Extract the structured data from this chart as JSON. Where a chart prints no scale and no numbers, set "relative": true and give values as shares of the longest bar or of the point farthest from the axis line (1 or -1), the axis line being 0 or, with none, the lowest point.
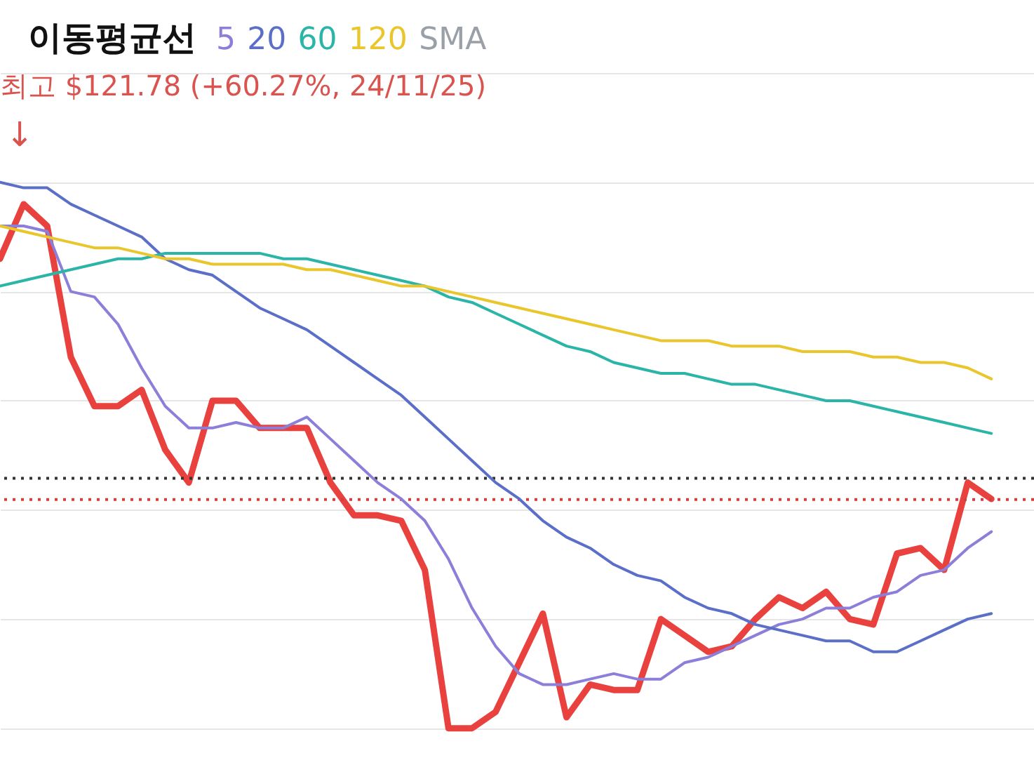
{
  "chart_data": {
    "type": "line",
    "title": "이동평균선",
    "relative": true,
    "grid": "y",
    "line_style": "solid",
    "categories": [
      null,
      null,
      null,
      null,
      null,
      null,
      null,
      null,
      null,
      null,
      null,
      null,
      null,
      null,
      null,
      null,
      null,
      null,
      null,
      null,
      null,
      null,
      null,
      null,
      null,
      null,
      null,
      null,
      null,
      null,
      null,
      null,
      null,
      null,
      null,
      null,
      null,
      null,
      null,
      null,
      null,
      null,
      null
    ],
    "series": [
      {
        "color": "#e8413e",
        "values": [
          0.86,
          0.96,
          0.92,
          0.68,
          0.59,
          0.59,
          0.62,
          0.51,
          0.45,
          0.6,
          0.6,
          0.55,
          0.55,
          0.55,
          0.45,
          0.39,
          0.39,
          0.38,
          0.29,
          0.0,
          0.0,
          0.03,
          0.12,
          0.21,
          0.02,
          0.08,
          0.07,
          0.07,
          0.2,
          0.17,
          0.14,
          0.15,
          0.2,
          0.24,
          0.22,
          0.25,
          0.2,
          0.19,
          0.32,
          0.33,
          0.29,
          0.45,
          0.42
        ]
      },
      {
        "name": "5",
        "color": "#8b7fd9",
        "values": [
          0.92,
          0.92,
          0.91,
          0.8,
          0.79,
          0.74,
          0.66,
          0.59,
          0.55,
          0.55,
          0.56,
          0.55,
          0.55,
          0.57,
          0.53,
          0.49,
          0.45,
          0.42,
          0.38,
          0.31,
          0.22,
          0.15,
          0.1,
          0.08,
          0.08,
          0.09,
          0.1,
          0.09,
          0.09,
          0.12,
          0.13,
          0.15,
          0.17,
          0.19,
          0.2,
          0.22,
          0.22,
          0.24,
          0.25,
          0.28,
          0.29,
          0.33,
          0.36
        ]
      },
      {
        "name": "20",
        "color": "#5b6fc8",
        "values": [
          1.0,
          0.99,
          0.99,
          0.96,
          0.94,
          0.92,
          0.9,
          0.86,
          0.84,
          0.83,
          0.8,
          0.77,
          0.75,
          0.73,
          0.7,
          0.67,
          0.64,
          0.61,
          0.57,
          0.53,
          0.49,
          0.45,
          0.42,
          0.38,
          0.35,
          0.33,
          0.3,
          0.28,
          0.27,
          0.24,
          0.22,
          0.21,
          0.19,
          0.18,
          0.17,
          0.16,
          0.16,
          0.14,
          0.14,
          0.16,
          0.18,
          0.2,
          0.21
        ]
      },
      {
        "name": "60",
        "color": "#2bb5a8",
        "values": [
          0.81,
          0.82,
          0.83,
          0.84,
          0.85,
          0.86,
          0.86,
          0.87,
          0.87,
          0.87,
          0.87,
          0.87,
          0.86,
          0.86,
          0.85,
          0.84,
          0.83,
          0.82,
          0.81,
          0.79,
          0.78,
          0.76,
          0.74,
          0.72,
          0.7,
          0.69,
          0.67,
          0.66,
          0.65,
          0.65,
          0.64,
          0.63,
          0.63,
          0.62,
          0.61,
          0.6,
          0.6,
          0.59,
          0.58,
          0.57,
          0.56,
          0.55,
          0.54
        ]
      },
      {
        "name": "120",
        "color": "#e8c62c",
        "values": [
          0.92,
          0.91,
          0.9,
          0.89,
          0.88,
          0.88,
          0.87,
          0.86,
          0.86,
          0.85,
          0.85,
          0.85,
          0.85,
          0.84,
          0.84,
          0.83,
          0.82,
          0.81,
          0.81,
          0.8,
          0.79,
          0.78,
          0.77,
          0.76,
          0.75,
          0.74,
          0.73,
          0.72,
          0.71,
          0.71,
          0.71,
          0.7,
          0.7,
          0.7,
          0.69,
          0.69,
          0.69,
          0.68,
          0.68,
          0.67,
          0.67,
          0.66,
          0.64
        ]
      }
    ],
    "ref_lines": [
      {
        "axis": "y",
        "value": 0.458,
        "color": "#333333",
        "line_style": "dotted"
      },
      {
        "axis": "y",
        "value": 0.419,
        "color": "#d04040",
        "line_style": "dotted"
      }
    ],
    "annotations": [
      "최고 $121.78 (+60.27%, 24/11/25)",
      "↓",
      "SMA"
    ]
  }
}
